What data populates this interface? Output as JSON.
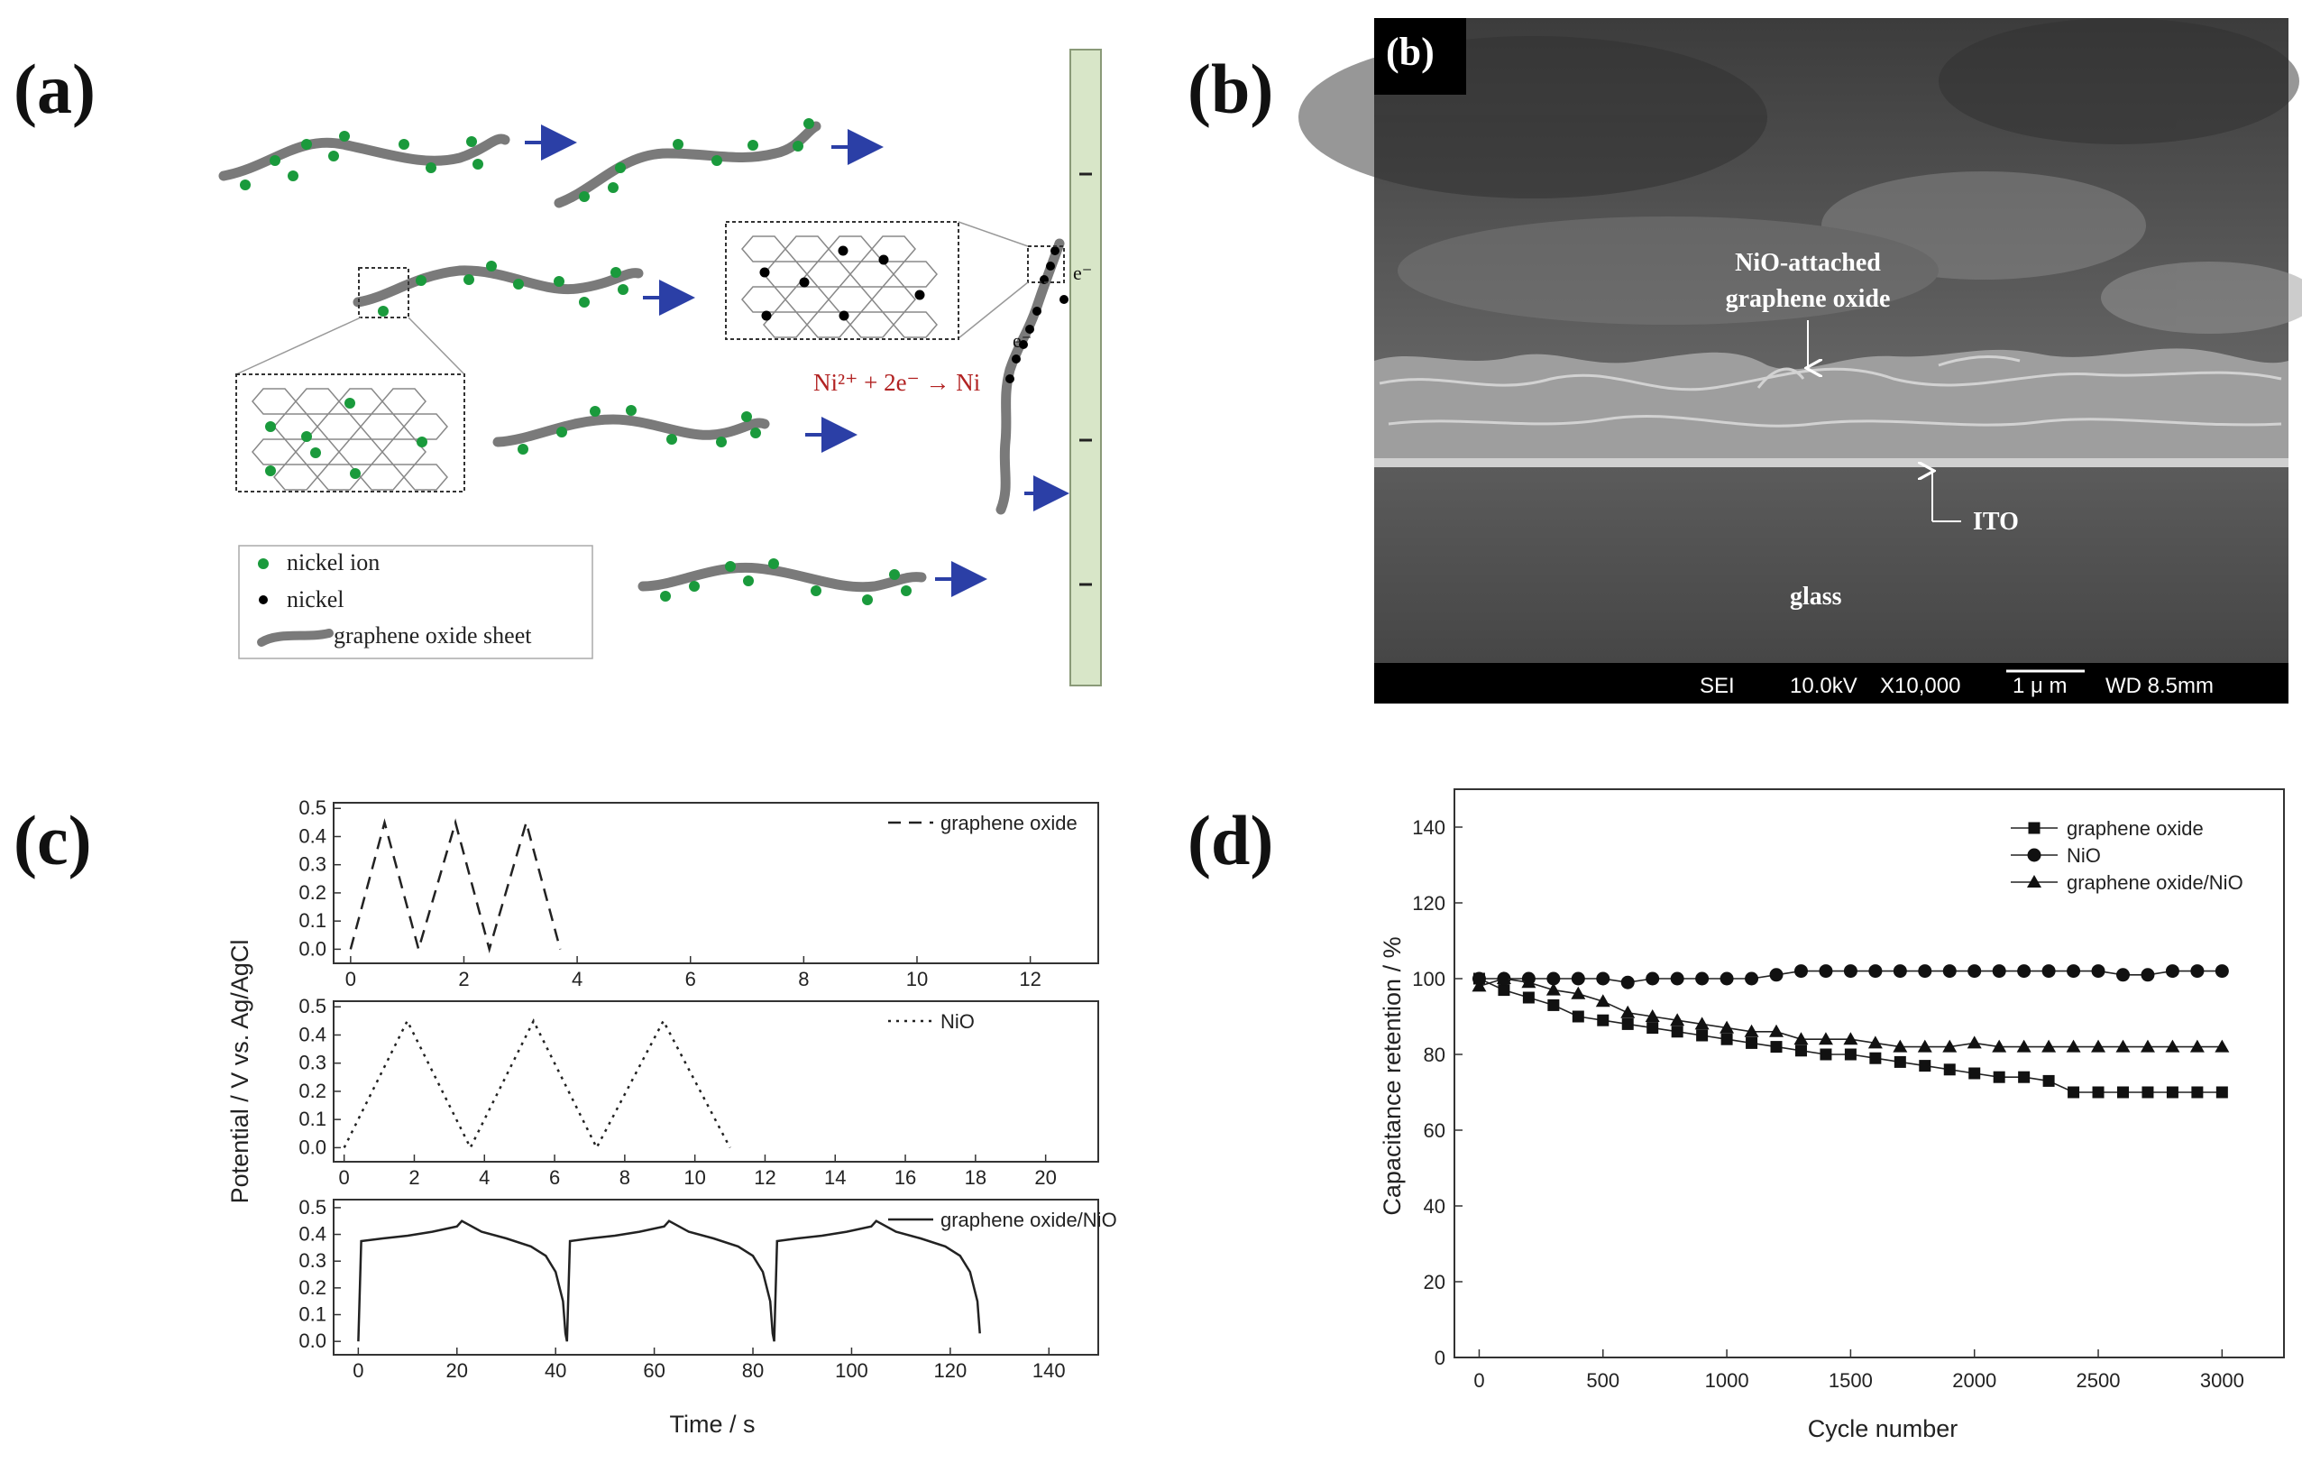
{
  "panel_labels": [
    "(a)",
    "(b)",
    "(c)",
    "(d)"
  ],
  "schematic": {
    "legend": [
      "nickel ion",
      "nickel",
      "graphene oxide sheet"
    ],
    "reaction": "Ni²⁺ + 2e⁻ → Ni",
    "electron": "e⁻"
  },
  "sem": {
    "label_np": [
      "NiO-attached",
      "graphene oxide"
    ],
    "label_ito": "ITO",
    "label_glass": "glass",
    "footer": {
      "mode": "SEI",
      "voltage": "10.0kV",
      "mag": "X10,000",
      "scale": "1 μ m",
      "wd": "WD 8.5mm"
    }
  },
  "colors": {
    "ion": "#1a9a3c",
    "nickel": "#000000",
    "sheet": "#7a7a7a",
    "arrow": "#2b3fa6",
    "reaction": "#b22222",
    "electrode": "#d8e6c8"
  },
  "chart_data": [
    {
      "type": "line",
      "panel": "(c)",
      "ylabel": "Potential /  V vs. Ag/AgCl",
      "xlabel": "Time / s",
      "subplots": [
        {
          "name": "graphene oxide",
          "xlim": [
            -0.3,
            13.2
          ],
          "xticks": [
            0,
            2,
            4,
            6,
            8,
            10,
            12
          ],
          "ylim": [
            -0.05,
            0.52
          ],
          "yticks": [
            0.0,
            0.1,
            0.2,
            0.3,
            0.4,
            0.5
          ],
          "style": "dashed",
          "x": [
            0,
            0.6,
            1.2,
            1.85,
            2.45,
            3.1,
            3.7
          ],
          "y": [
            0.0,
            0.45,
            0.0,
            0.45,
            0.0,
            0.45,
            0.0
          ]
        },
        {
          "name": "NiO",
          "xlim": [
            -0.3,
            21.5
          ],
          "xticks": [
            0,
            2,
            4,
            6,
            8,
            10,
            12,
            14,
            16,
            18,
            20
          ],
          "ylim": [
            -0.05,
            0.52
          ],
          "yticks": [
            0.0,
            0.1,
            0.2,
            0.3,
            0.4,
            0.5
          ],
          "style": "dotted",
          "x": [
            0,
            1.8,
            3.6,
            5.4,
            7.2,
            9.1,
            11.0
          ],
          "y": [
            0.0,
            0.45,
            0.0,
            0.45,
            0.0,
            0.45,
            0.0
          ]
        },
        {
          "name": "graphene oxide/NiO",
          "xlim": [
            -5,
            150
          ],
          "xticks": [
            0,
            20,
            40,
            60,
            80,
            100,
            120,
            140
          ],
          "ylim": [
            -0.05,
            0.53
          ],
          "yticks": [
            0.0,
            0.1,
            0.2,
            0.3,
            0.4,
            0.5
          ],
          "style": "solid",
          "x": [
            0,
            0.6,
            5,
            10,
            15,
            20,
            21,
            25,
            30,
            35,
            38,
            40,
            41.5,
            42,
            42.3,
            42.9,
            47,
            52,
            57,
            62,
            63,
            67,
            72,
            77,
            80,
            82,
            83.5,
            84,
            84.3,
            84.9,
            89,
            94,
            99,
            104,
            105,
            109,
            114,
            119,
            122,
            124,
            125.5,
            126
          ],
          "y": [
            0.0,
            0.375,
            0.385,
            0.395,
            0.41,
            0.43,
            0.45,
            0.41,
            0.385,
            0.355,
            0.32,
            0.26,
            0.15,
            0.03,
            0.0,
            0.375,
            0.385,
            0.395,
            0.41,
            0.43,
            0.45,
            0.41,
            0.385,
            0.355,
            0.32,
            0.26,
            0.15,
            0.03,
            0.0,
            0.375,
            0.385,
            0.395,
            0.41,
            0.43,
            0.45,
            0.41,
            0.385,
            0.355,
            0.32,
            0.26,
            0.15,
            0.03
          ]
        }
      ]
    },
    {
      "type": "line",
      "panel": "(d)",
      "xlabel": "Cycle number",
      "ylabel": "Capacitance retention  /  %",
      "xlim": [
        -100,
        3250
      ],
      "ylim": [
        0,
        150
      ],
      "xticks": [
        0,
        500,
        1000,
        1500,
        2000,
        2500,
        3000
      ],
      "yticks": [
        0,
        20,
        40,
        60,
        80,
        100,
        120,
        140
      ],
      "legend_position": "top-right",
      "x": [
        0,
        100,
        200,
        300,
        400,
        500,
        600,
        700,
        800,
        900,
        1000,
        1100,
        1200,
        1300,
        1400,
        1500,
        1600,
        1700,
        1800,
        1900,
        2000,
        2100,
        2200,
        2300,
        2400,
        2500,
        2600,
        2700,
        2800,
        2900,
        3000
      ],
      "series": [
        {
          "name": "graphene oxide",
          "marker": "square",
          "values": [
            100,
            97,
            95,
            93,
            90,
            89,
            88,
            87,
            86,
            85,
            84,
            83,
            82,
            81,
            80,
            80,
            79,
            78,
            77,
            76,
            75,
            74,
            74,
            73,
            70,
            70,
            70,
            70,
            70,
            70,
            70
          ]
        },
        {
          "name": "NiO",
          "marker": "circle",
          "values": [
            100,
            100,
            100,
            100,
            100,
            100,
            99,
            100,
            100,
            100,
            100,
            100,
            101,
            102,
            102,
            102,
            102,
            102,
            102,
            102,
            102,
            102,
            102,
            102,
            102,
            102,
            101,
            101,
            102,
            102,
            102
          ]
        },
        {
          "name": "graphene oxide/NiO",
          "marker": "triangle",
          "values": [
            98,
            100,
            99,
            97,
            96,
            94,
            91,
            90,
            89,
            88,
            87,
            86,
            86,
            84,
            84,
            84,
            83,
            82,
            82,
            82,
            83,
            82,
            82,
            82,
            82,
            82,
            82,
            82,
            82,
            82,
            82
          ]
        }
      ]
    }
  ]
}
